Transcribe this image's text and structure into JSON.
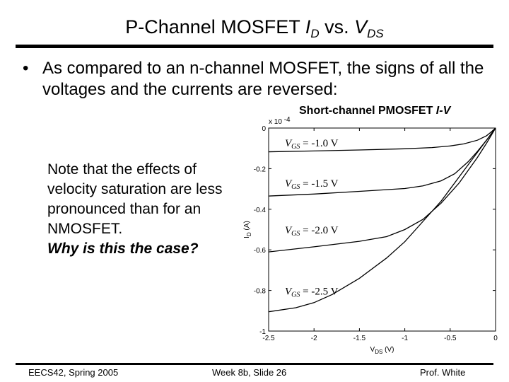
{
  "slide": {
    "title": {
      "text": "P-Channel MOSFET ",
      "i_label": "I",
      "i_sub": "D",
      "vs": " vs. ",
      "v_label": "V",
      "v_sub": "DS"
    },
    "bullet_symbol": "•",
    "bullet_text": "As compared to an n-channel MOSFET, the signs of all the voltages and the currents are reversed:",
    "note": {
      "text": "Note that the effects of velocity saturation are less pronounced than for an NMOSFET.",
      "question": "Why is this the case?"
    },
    "footer": {
      "left": "EECS42, Spring 2005",
      "center": "Week 8b, Slide 26",
      "right": "Prof. White"
    }
  },
  "chart_data": {
    "type": "line",
    "title": "Short-channel PMOSFET I-V",
    "title_main": "Short-channel PMOSFET ",
    "title_italic": "I-V",
    "xlabel": "V",
    "xlabel_sub": "DS",
    "xlabel_unit": " (V)",
    "ylabel": "I",
    "ylabel_sub": "D",
    "ylabel_unit": " (A)",
    "y_multiplier": "x 10",
    "y_multiplier_exp": "-4",
    "xlim": [
      -2.5,
      0
    ],
    "ylim": [
      -1,
      0
    ],
    "xticks": [
      -2.5,
      -2,
      -1.5,
      -1,
      -0.5,
      0
    ],
    "xtick_labels": [
      "-2.5",
      "-2",
      "-1.5",
      "-1",
      "-0.5",
      "0"
    ],
    "yticks": [
      0,
      -0.2,
      -0.4,
      -0.6,
      -0.8,
      -1
    ],
    "ytick_labels": [
      "0",
      "-0.2",
      "-0.4",
      "-0.6",
      "-0.8",
      "-1"
    ],
    "grid": false,
    "series": [
      {
        "name": "VGS = -1.0 V",
        "label_v": "V",
        "label_sub": "GS",
        "label_val": " = -1.0 V",
        "x": [
          -2.5,
          -2.0,
          -1.5,
          -1.0,
          -0.7,
          -0.5,
          -0.35,
          -0.2,
          -0.1,
          -0.05,
          0
        ],
        "y": [
          -0.117,
          -0.113,
          -0.108,
          -0.102,
          -0.096,
          -0.088,
          -0.078,
          -0.06,
          -0.038,
          -0.02,
          0
        ]
      },
      {
        "name": "VGS = -1.5 V",
        "label_v": "V",
        "label_sub": "GS",
        "label_val": " = -1.5 V",
        "x": [
          -2.5,
          -2.0,
          -1.5,
          -1.0,
          -0.8,
          -0.6,
          -0.45,
          -0.3,
          -0.2,
          -0.1,
          0
        ],
        "y": [
          -0.335,
          -0.325,
          -0.312,
          -0.298,
          -0.285,
          -0.26,
          -0.225,
          -0.165,
          -0.115,
          -0.06,
          0
        ]
      },
      {
        "name": "VGS = -2.0 V",
        "label_v": "V",
        "label_sub": "GS",
        "label_val": " = -2.0 V",
        "x": [
          -2.5,
          -2.0,
          -1.5,
          -1.2,
          -1.0,
          -0.8,
          -0.6,
          -0.4,
          -0.2,
          -0.1,
          0
        ],
        "y": [
          -0.61,
          -0.585,
          -0.558,
          -0.535,
          -0.5,
          -0.45,
          -0.37,
          -0.27,
          -0.145,
          -0.075,
          0
        ]
      },
      {
        "name": "VGS = -2.5 V",
        "label_v": "V",
        "label_sub": "GS",
        "label_val": " = -2.5 V",
        "x": [
          -2.5,
          -2.2,
          -2.0,
          -1.8,
          -1.5,
          -1.2,
          -1.0,
          -0.8,
          -0.6,
          -0.4,
          -0.2,
          0
        ],
        "y": [
          -0.905,
          -0.885,
          -0.86,
          -0.82,
          -0.74,
          -0.64,
          -0.56,
          -0.46,
          -0.36,
          -0.24,
          -0.12,
          0
        ]
      }
    ],
    "annotation_y": [
      -0.09,
      -0.29,
      -0.52,
      -0.82
    ]
  }
}
